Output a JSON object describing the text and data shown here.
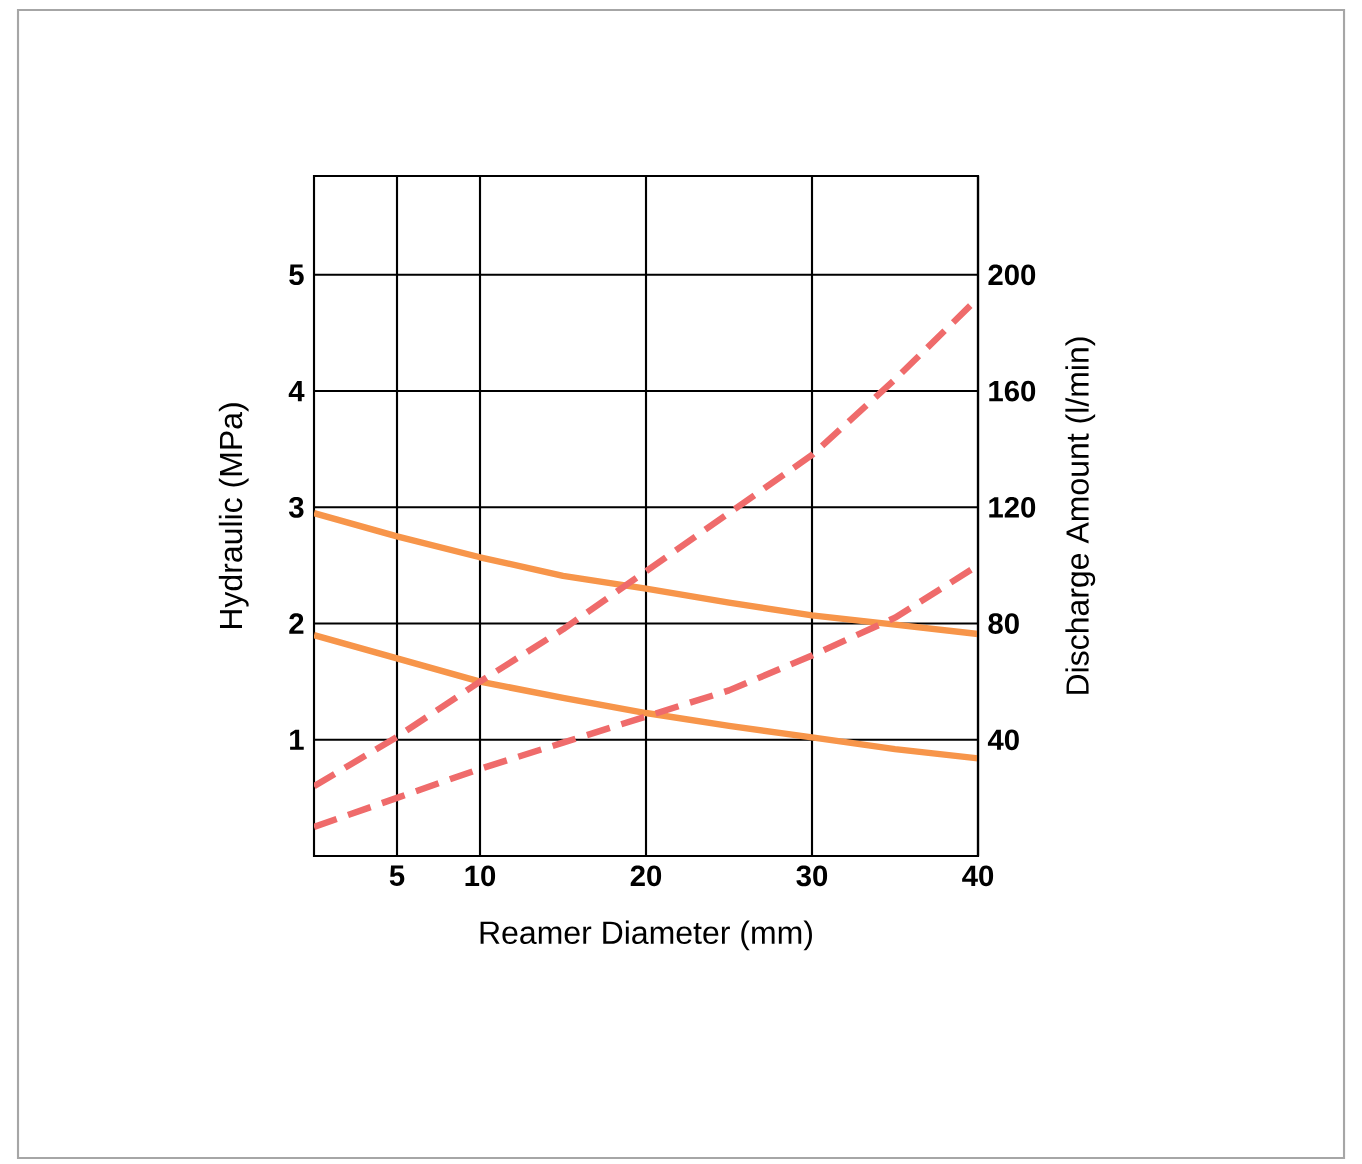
{
  "chart_data": {
    "type": "line",
    "xlabel": "Reamer Diameter (mm)",
    "ylabel": "Hydraulic (MPa)",
    "y2label": "Discharge Amount (l/min)",
    "x": [
      0,
      5,
      10,
      15,
      20,
      25,
      30,
      35,
      40
    ],
    "xlim": [
      0,
      40
    ],
    "xticks": [
      5,
      10,
      20,
      30,
      40
    ],
    "ylim": [
      0,
      5.85
    ],
    "yticks": [
      1,
      2,
      3,
      4,
      5
    ],
    "y2lim": [
      0,
      234
    ],
    "y2ticks": [
      40,
      80,
      120,
      160,
      200
    ],
    "grid": true,
    "series": [
      {
        "color": "#f7954a",
        "line_style": "solid",
        "axis": "y",
        "values": [
          2.95,
          2.75,
          2.57,
          2.41,
          2.3,
          2.18,
          2.07,
          1.99,
          1.91
        ]
      },
      {
        "color": "#f7954a",
        "line_style": "solid",
        "axis": "y",
        "values": [
          1.9,
          1.7,
          1.5,
          1.36,
          1.23,
          1.12,
          1.02,
          0.92,
          0.84
        ]
      },
      {
        "color": "#ef6b6b",
        "line_style": "dashed",
        "axis": "y2",
        "values": [
          24,
          41,
          60,
          78,
          98,
          118,
          138,
          164,
          192
        ]
      },
      {
        "color": "#ef6b6b",
        "line_style": "dashed",
        "axis": "y2",
        "values": [
          10,
          20,
          30,
          39,
          48,
          57,
          69,
          82,
          100
        ]
      }
    ]
  }
}
